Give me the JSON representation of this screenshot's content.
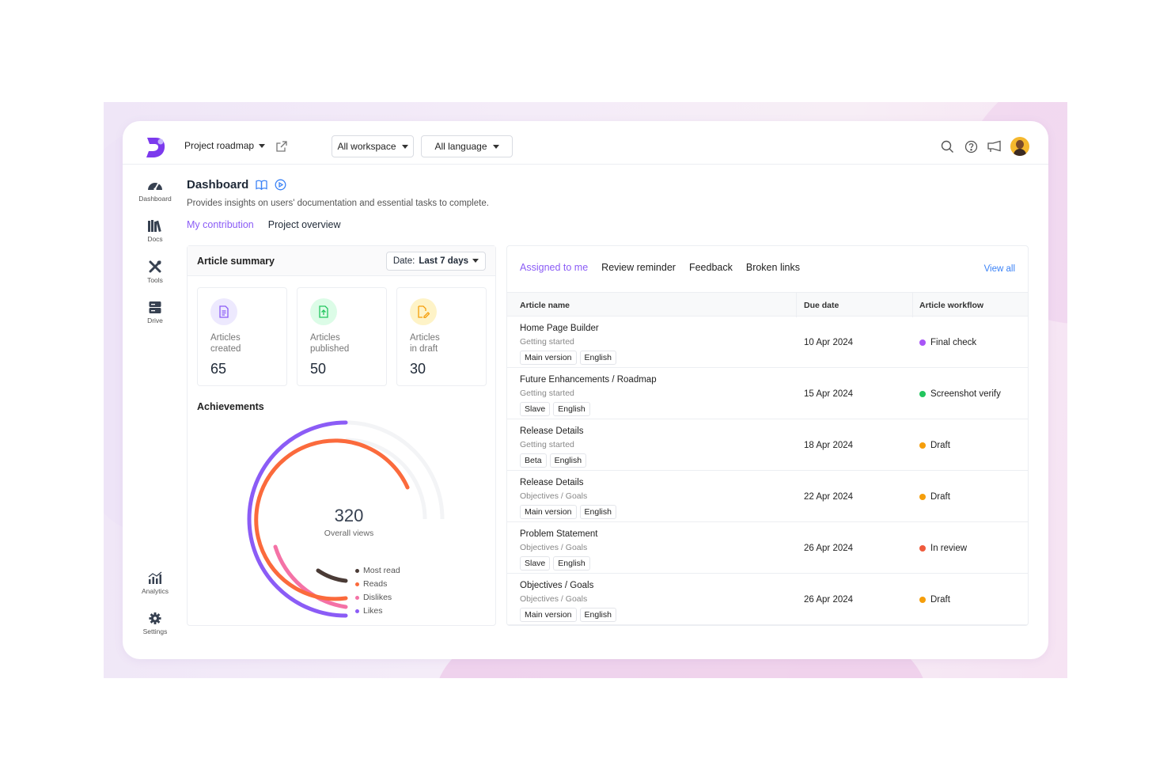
{
  "topbar": {
    "project": "Project roadmap",
    "workspace": "All workspace",
    "language": "All language"
  },
  "sidebar": {
    "items": [
      {
        "label": "Dashboard",
        "icon": "gauge-icon"
      },
      {
        "label": "Docs",
        "icon": "library-icon"
      },
      {
        "label": "Tools",
        "icon": "tools-icon"
      },
      {
        "label": "Drive",
        "icon": "drive-icon"
      },
      {
        "label": "Analytics",
        "icon": "analytics-icon"
      },
      {
        "label": "Settings",
        "icon": "gear-icon"
      }
    ]
  },
  "header": {
    "title": "Dashboard",
    "subtitle": "Provides insights on users' documentation and essential tasks to complete.",
    "tabs": [
      "My contribution",
      "Project overview"
    ]
  },
  "summary": {
    "title": "Article summary",
    "date_label": "Date:",
    "date_value": "Last 7 days",
    "stats": [
      {
        "label_line1": "Articles",
        "label_line2": "created",
        "value": "65",
        "color": "#8b5cf6"
      },
      {
        "label_line1": "Articles",
        "label_line2": "published",
        "value": "50",
        "color": "#22c55e"
      },
      {
        "label_line1": "Articles",
        "label_line2": "in draft",
        "value": "30",
        "color": "#f59e0b"
      }
    ],
    "achievements_title": "Achievements",
    "total_value": "320",
    "total_label": "Overall views",
    "legend": [
      {
        "label": "Most read",
        "color": "#4a3b36"
      },
      {
        "label": "Reads",
        "color": "#fb6a3c"
      },
      {
        "label": "Dislikes",
        "color": "#f472a6"
      },
      {
        "label": "Likes",
        "color": "#8b5cf6"
      }
    ]
  },
  "tasks": {
    "tabs": [
      "Assigned to me",
      "Review reminder",
      "Feedback",
      "Broken links"
    ],
    "view_all": "View all",
    "columns": [
      "Article name",
      "Due date",
      "Article workflow"
    ],
    "rows": [
      {
        "name": "Home Page Builder",
        "category": "Getting started",
        "tags": [
          "Main version",
          "English"
        ],
        "due": "10 Apr 2024",
        "workflow": "Final check",
        "color": "#a855f7"
      },
      {
        "name": "Future Enhancements / Roadmap",
        "category": "Getting started",
        "tags": [
          "Slave",
          "English"
        ],
        "due": "15 Apr 2024",
        "workflow": "Screenshot verify",
        "color": "#22c55e"
      },
      {
        "name": "Release Details",
        "category": "Getting started",
        "tags": [
          "Beta",
          "English"
        ],
        "due": "18 Apr 2024",
        "workflow": "Draft",
        "color": "#f59e0b"
      },
      {
        "name": "Release Details",
        "category": "Objectives / Goals",
        "tags": [
          "Main version",
          "English"
        ],
        "due": "22 Apr 2024",
        "workflow": "Draft",
        "color": "#f59e0b"
      },
      {
        "name": "Problem Statement",
        "category": "Objectives / Goals",
        "tags": [
          "Slave",
          "English"
        ],
        "due": "26 Apr 2024",
        "workflow": "In review",
        "color": "#ef5a3c"
      },
      {
        "name": "Objectives / Goals",
        "category": "Objectives / Goals",
        "tags": [
          "Main version",
          "English"
        ],
        "due": "26 Apr 2024",
        "workflow": "Draft",
        "color": "#f59e0b"
      }
    ]
  }
}
